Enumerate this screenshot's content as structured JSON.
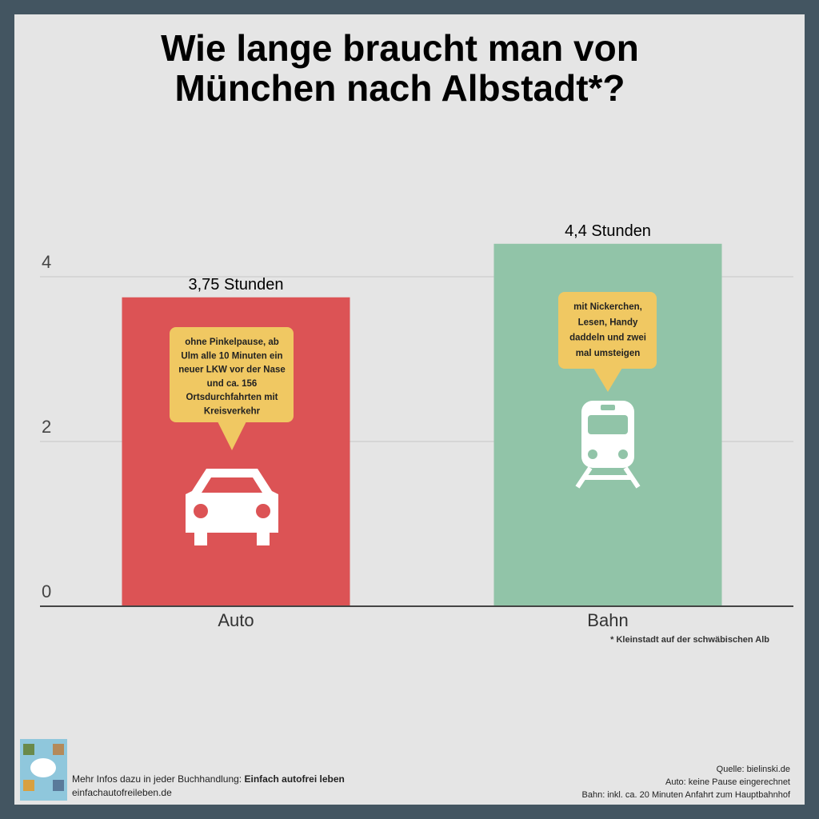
{
  "chart_data": {
    "type": "bar",
    "title": [
      "Wie lange braucht man von",
      "München nach Albstadt*?"
    ],
    "categories": [
      "Auto",
      "Bahn"
    ],
    "values": [
      3.75,
      4.4
    ],
    "value_labels": [
      "3,75 Stunden",
      "4,4 Stunden"
    ],
    "colors": [
      "#dc5355",
      "#91c4a8"
    ],
    "ylim": [
      0,
      5
    ],
    "yticks": [
      0,
      2,
      4
    ],
    "grid": true,
    "annotations": [
      [
        "ohne Pinkelpause, ab",
        "Ulm alle 10 Minuten ein",
        "neuer LKW vor der Nase",
        "und ca. 156",
        "Ortsdurchfahrten mit",
        "Kreisverkehr"
      ],
      [
        "mit Nickerchen,",
        "Lesen, Handy",
        "daddeln und zwei",
        "mal umsteigen"
      ]
    ],
    "footnote": "* Kleinstadt auf der schwäbischen Alb"
  },
  "footer": {
    "info": "Mehr Infos dazu in jeder Buchhandlung: ",
    "book": "Einfach autofrei leben",
    "url": "einfachautofreileben.de",
    "sources": [
      "Quelle: bielinski.de",
      "Auto: keine Pause eingerechnet",
      "Bahn: inkl. ca. 20 Minuten Anfahrt zum Hauptbahnhof"
    ]
  }
}
